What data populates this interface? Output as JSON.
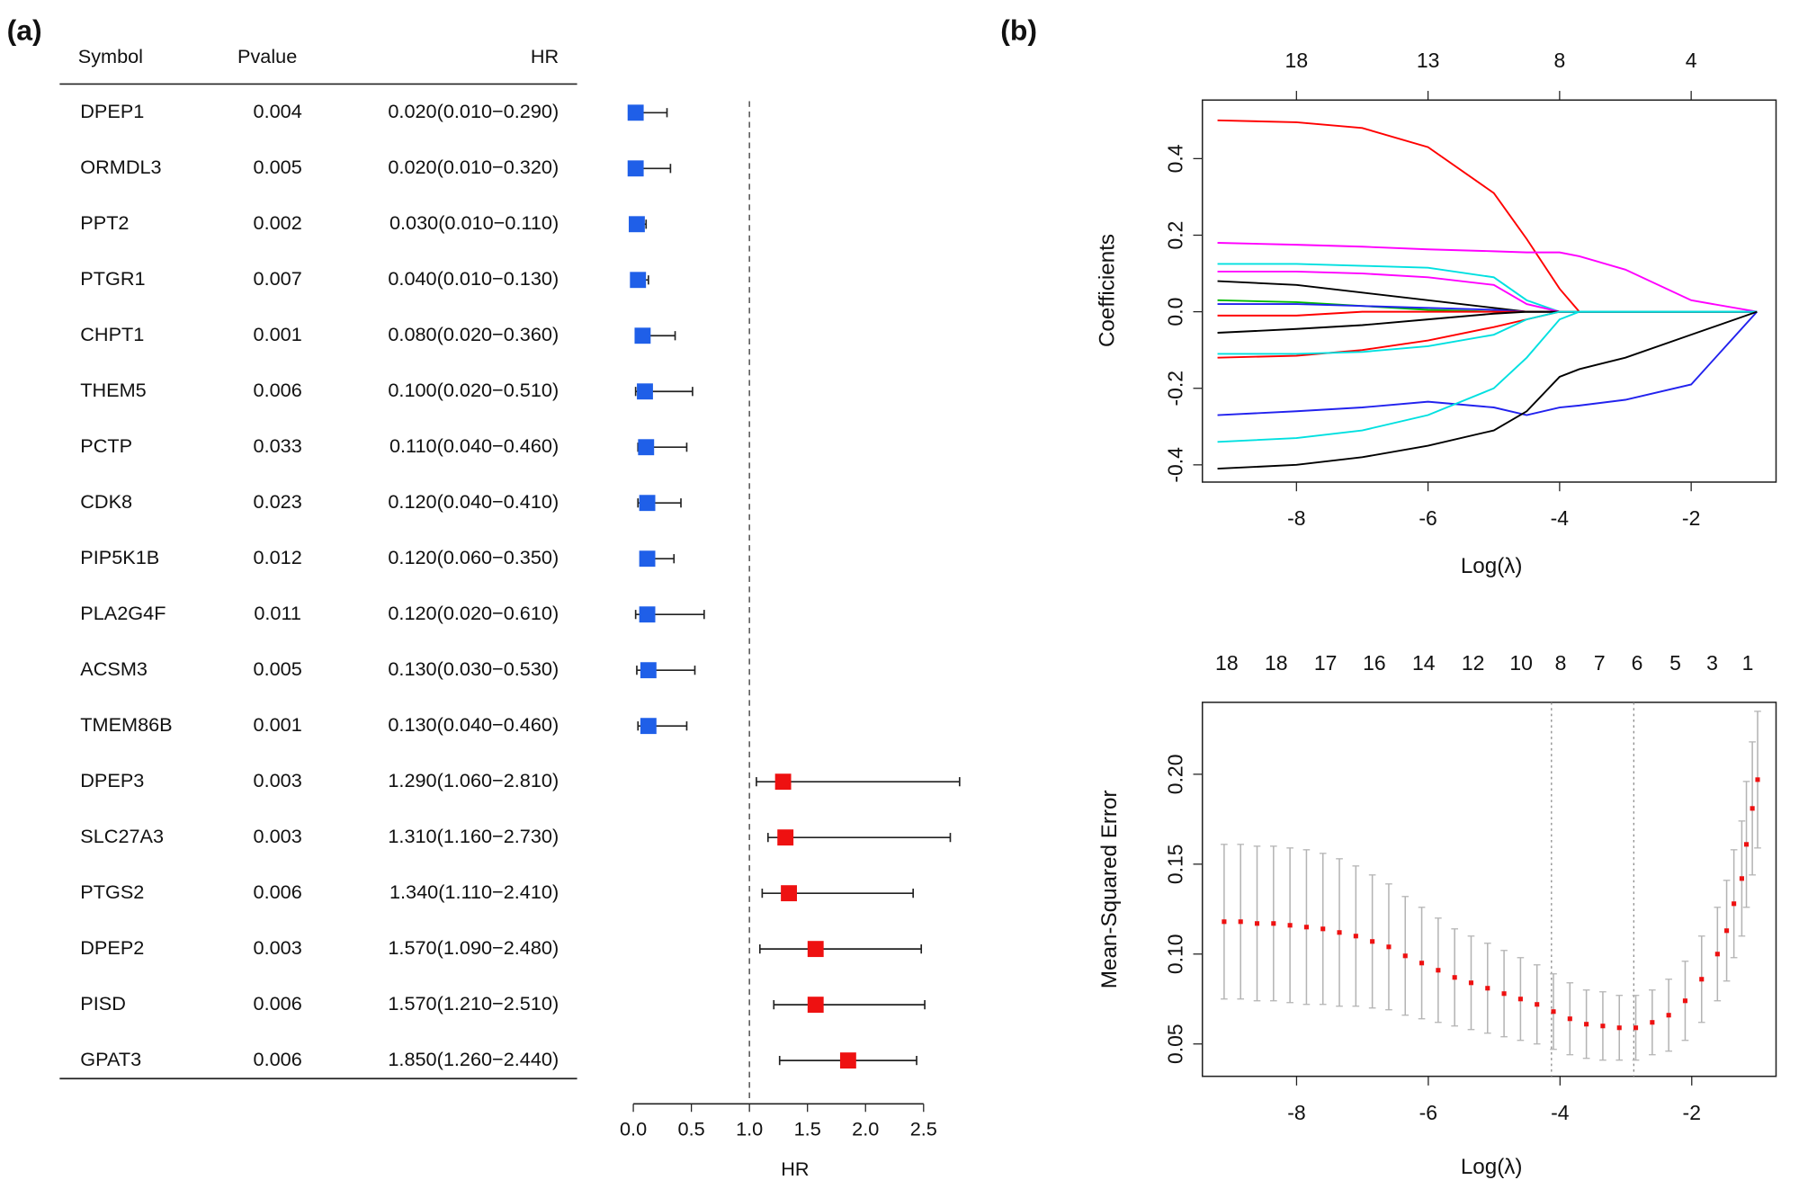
{
  "panel_labels": [
    "(a)",
    "(b)"
  ],
  "chart_data": [
    {
      "type": "forest",
      "columns": [
        "Symbol",
        "Pvalue",
        "HR"
      ],
      "categories": [
        "DPEP1",
        "ORMDL3",
        "PPT2",
        "PTGR1",
        "CHPT1",
        "THEM5",
        "PCTP",
        "CDK8",
        "PIP5K1B",
        "PLA2G4F",
        "ACSM3",
        "TMEM86B",
        "DPEP3",
        "SLC27A3",
        "PTGS2",
        "DPEP2",
        "PISD",
        "GPAT3"
      ],
      "pvalues": [
        0.004,
        0.005,
        0.002,
        0.007,
        0.001,
        0.006,
        0.033,
        0.023,
        0.012,
        0.011,
        0.005,
        0.001,
        0.003,
        0.003,
        0.006,
        0.003,
        0.006,
        0.006
      ],
      "values": [
        0.02,
        0.02,
        0.03,
        0.04,
        0.08,
        0.1,
        0.11,
        0.12,
        0.12,
        0.12,
        0.13,
        0.13,
        1.29,
        1.31,
        1.34,
        1.57,
        1.57,
        1.85
      ],
      "lower": [
        0.01,
        0.01,
        0.01,
        0.01,
        0.02,
        0.02,
        0.04,
        0.04,
        0.06,
        0.02,
        0.03,
        0.04,
        1.06,
        1.16,
        1.11,
        1.09,
        1.21,
        1.26
      ],
      "upper": [
        0.29,
        0.32,
        0.11,
        0.13,
        0.36,
        0.51,
        0.46,
        0.41,
        0.35,
        0.61,
        0.53,
        0.46,
        2.81,
        2.73,
        2.41,
        2.48,
        2.51,
        2.44
      ],
      "hr_labels": [
        "0.020(0.010−0.290)",
        "0.020(0.010−0.320)",
        "0.030(0.010−0.110)",
        "0.040(0.010−0.130)",
        "0.080(0.020−0.360)",
        "0.100(0.020−0.510)",
        "0.110(0.040−0.460)",
        "0.120(0.040−0.410)",
        "0.120(0.060−0.350)",
        "0.120(0.020−0.610)",
        "0.130(0.030−0.530)",
        "0.130(0.040−0.460)",
        "1.290(1.060−2.810)",
        "1.310(1.160−2.730)",
        "1.340(1.110−2.410)",
        "1.570(1.090−2.480)",
        "1.570(1.210−2.510)",
        "1.850(1.260−2.440)"
      ],
      "color_below": "#1f5fe8",
      "color_above": "#ee1111",
      "reference_line": 1,
      "xlim": [
        0,
        2.5
      ],
      "xticks": [
        {
          "value": 0,
          "label": "0.0"
        },
        0.5,
        {
          "value": 1,
          "label": "1.0"
        },
        1.5,
        {
          "value": 2,
          "label": "2.0"
        },
        2.5
      ],
      "xlabel": "HR"
    },
    {
      "type": "line",
      "x": [
        -9.2,
        -8,
        -7,
        -6,
        -5,
        -4.5,
        -4,
        -3.7,
        -3,
        -2,
        -1
      ],
      "series": [
        {
          "color": "#ff0000",
          "values": [
            0.5,
            0.495,
            0.48,
            0.43,
            0.31,
            0.19,
            0.06,
            0,
            0,
            0,
            0
          ]
        },
        {
          "color": "#ff00ff",
          "values": [
            0.18,
            0.175,
            0.17,
            0.163,
            0.158,
            0.155,
            0.155,
            0.145,
            0.11,
            0.03,
            0
          ]
        },
        {
          "color": "#00e0e0",
          "values": [
            0.125,
            0.125,
            0.12,
            0.115,
            0.09,
            0.03,
            0,
            0,
            0,
            0,
            0
          ]
        },
        {
          "color": "#ff00ff",
          "values": [
            0.105,
            0.105,
            0.1,
            0.09,
            0.07,
            0.02,
            0,
            0,
            0,
            0,
            0
          ]
        },
        {
          "color": "#000000",
          "values": [
            0.08,
            0.07,
            0.05,
            0.03,
            0.01,
            0,
            0,
            0,
            0,
            0,
            0
          ]
        },
        {
          "color": "#00bb00",
          "values": [
            0.03,
            0.025,
            0.015,
            0.005,
            0,
            0,
            0,
            0,
            0,
            0,
            0
          ]
        },
        {
          "color": "#2222ee",
          "values": [
            0.02,
            0.02,
            0.015,
            0.01,
            0.005,
            0,
            0,
            0,
            0,
            0,
            0
          ]
        },
        {
          "color": "#ff0000",
          "values": [
            -0.01,
            -0.01,
            0,
            0,
            0,
            0,
            0,
            0,
            0,
            0,
            0
          ]
        },
        {
          "color": "#000000",
          "values": [
            -0.055,
            -0.045,
            -0.035,
            -0.02,
            -0.005,
            0,
            0,
            0,
            0,
            0,
            0
          ]
        },
        {
          "color": "#ff0000",
          "values": [
            -0.12,
            -0.115,
            -0.1,
            -0.075,
            -0.04,
            -0.02,
            0,
            0,
            0,
            0,
            0
          ]
        },
        {
          "color": "#00e0e0",
          "values": [
            -0.11,
            -0.11,
            -0.105,
            -0.09,
            -0.06,
            -0.02,
            0,
            0,
            0,
            0,
            0
          ]
        },
        {
          "color": "#2222ee",
          "values": [
            -0.27,
            -0.26,
            -0.25,
            -0.235,
            -0.25,
            -0.27,
            -0.25,
            -0.245,
            -0.23,
            -0.19,
            0
          ]
        },
        {
          "color": "#00e0e0",
          "values": [
            -0.34,
            -0.33,
            -0.31,
            -0.27,
            -0.2,
            -0.12,
            -0.02,
            0,
            0,
            0,
            0
          ]
        },
        {
          "color": "#000000",
          "values": [
            -0.41,
            -0.4,
            -0.38,
            -0.35,
            -0.31,
            -0.26,
            -0.17,
            -0.15,
            -0.12,
            -0.06,
            0
          ]
        }
      ],
      "xlim": [
        -9.43,
        -0.71
      ],
      "xticks": [
        -8,
        -6,
        -4,
        -2
      ],
      "ylim": [
        -0.445,
        0.553
      ],
      "yticks": [
        -0.4,
        -0.2,
        {
          "value": 0,
          "label": "0.0"
        },
        0.2,
        0.4
      ],
      "top_ticks": [
        {
          "value": -8,
          "label": "18"
        },
        {
          "value": -6,
          "label": "13"
        },
        {
          "value": -4,
          "label": "8"
        },
        {
          "value": -2,
          "label": "4"
        }
      ],
      "xlabel": "Log(λ)",
      "ylabel": "Coefficients"
    },
    {
      "type": "errorbar",
      "x": [
        -9.1,
        -8.85,
        -8.6,
        -8.35,
        -8.1,
        -7.85,
        -7.6,
        -7.35,
        -7.1,
        -6.85,
        -6.6,
        -6.35,
        -6.1,
        -5.85,
        -5.6,
        -5.35,
        -5.1,
        -4.85,
        -4.6,
        -4.35,
        -4.1,
        -3.85,
        -3.6,
        -3.35,
        -3.1,
        -2.85,
        -2.6,
        -2.35,
        -2.1,
        -1.85,
        -1.61,
        -1.47,
        -1.36,
        -1.24,
        -1.17,
        -1.08,
        -1.0
      ],
      "values": [
        0.118,
        0.118,
        0.117,
        0.117,
        0.116,
        0.115,
        0.114,
        0.112,
        0.11,
        0.107,
        0.104,
        0.099,
        0.095,
        0.091,
        0.087,
        0.084,
        0.081,
        0.078,
        0.075,
        0.072,
        0.068,
        0.064,
        0.061,
        0.06,
        0.059,
        0.059,
        0.062,
        0.066,
        0.074,
        0.086,
        0.1,
        0.113,
        0.128,
        0.142,
        0.161,
        0.181,
        0.197
      ],
      "errors": [
        0.043,
        0.043,
        0.043,
        0.043,
        0.043,
        0.043,
        0.042,
        0.041,
        0.039,
        0.037,
        0.035,
        0.033,
        0.031,
        0.029,
        0.027,
        0.026,
        0.025,
        0.024,
        0.023,
        0.022,
        0.021,
        0.02,
        0.019,
        0.019,
        0.018,
        0.018,
        0.018,
        0.02,
        0.022,
        0.024,
        0.026,
        0.028,
        0.03,
        0.032,
        0.035,
        0.037,
        0.038
      ],
      "color": "#ee1111",
      "error_color": "#b4b4b4",
      "vlines": [
        -4.13,
        -2.88
      ],
      "xlim": [
        -9.43,
        -0.72
      ],
      "xticks": [
        -8,
        -6,
        -4,
        -2
      ],
      "ylim": [
        0.032,
        0.24
      ],
      "yticks": [
        0.05,
        {
          "value": 0.1,
          "label": "0.10"
        },
        0.15,
        {
          "value": 0.2,
          "label": "0.20"
        }
      ],
      "top_ticks": [
        {
          "value": -9.06,
          "label": "18"
        },
        {
          "value": -8.31,
          "label": "18"
        },
        {
          "value": -7.56,
          "label": "17"
        },
        {
          "value": -6.82,
          "label": "16"
        },
        {
          "value": -6.07,
          "label": "14"
        },
        {
          "value": -5.32,
          "label": "12"
        },
        {
          "value": -4.59,
          "label": "10"
        },
        {
          "value": -3.99,
          "label": "8"
        },
        {
          "value": -3.4,
          "label": "7"
        },
        {
          "value": -2.83,
          "label": "6"
        },
        {
          "value": -2.25,
          "label": "5"
        },
        {
          "value": -1.69,
          "label": "3"
        },
        {
          "value": -1.15,
          "label": "1"
        }
      ],
      "xlabel": "Log(λ)",
      "ylabel": "Mean-Squared Error"
    }
  ]
}
